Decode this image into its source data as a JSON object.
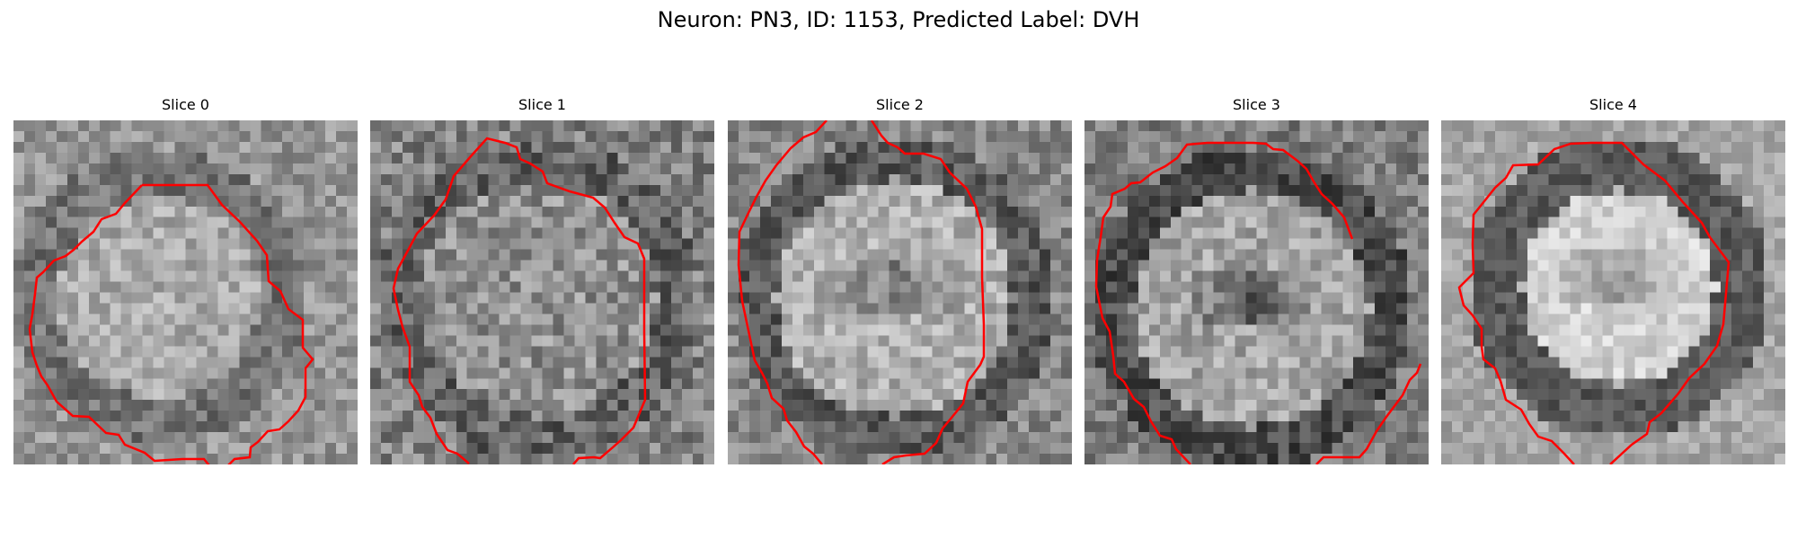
{
  "figure": {
    "title": "Neuron: PN3, ID: 1153, Predicted Label: DVH",
    "contour_color": "#ff0000"
  },
  "panels": [
    {
      "title": "Slice 0",
      "cell_style": "ring-faint"
    },
    {
      "title": "Slice 1",
      "cell_style": "speckled"
    },
    {
      "title": "Slice 2",
      "cell_style": "dark-nucleus"
    },
    {
      "title": "Slice 3",
      "cell_style": "dark-nucleus-strong"
    },
    {
      "title": "Slice 4",
      "cell_style": "ring-bright"
    }
  ]
}
